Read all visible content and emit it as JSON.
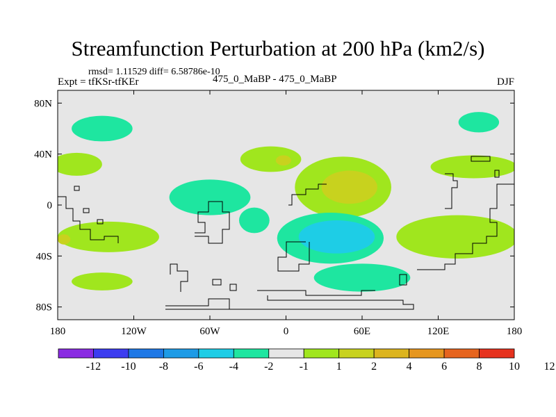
{
  "title": "Streamfunction Perturbation at 200 hPa (km2/s)",
  "stats": "rmsd= 1.11529 diff= 6.58786e-10",
  "left_label": "Expt = tfKSr-tfKEr",
  "center_label": "475_0_MaBP - 475_0_MaBP",
  "right_label": "DJF",
  "chart_data": {
    "type": "heatmap",
    "projection": "cylindrical equidistant",
    "xlim": [
      -180,
      180
    ],
    "ylim": [
      -90,
      90
    ],
    "x_ticks": [
      {
        "value": -180,
        "label": "180"
      },
      {
        "value": -120,
        "label": "120W"
      },
      {
        "value": -60,
        "label": "60W"
      },
      {
        "value": 0,
        "label": "0"
      },
      {
        "value": 60,
        "label": "60E"
      },
      {
        "value": 120,
        "label": "120E"
      },
      {
        "value": 180,
        "label": "180"
      }
    ],
    "y_ticks": [
      {
        "value": 80,
        "label": "80N"
      },
      {
        "value": 40,
        "label": "40N"
      },
      {
        "value": 0,
        "label": "0"
      },
      {
        "value": -40,
        "label": "40S"
      },
      {
        "value": -80,
        "label": "80S"
      }
    ],
    "colorbar": {
      "colors": [
        "#8a2be2",
        "#3c3cf0",
        "#1e78e6",
        "#1e9be6",
        "#1ecde6",
        "#1ee6a0",
        "#e6e6e6",
        "#a0e61e",
        "#c8d21e",
        "#dcb41e",
        "#e6961e",
        "#e6641e",
        "#e6321e"
      ],
      "labels": [
        "-12",
        "-10",
        "-8",
        "-6",
        "-4",
        "-2",
        "-1",
        "1",
        "2",
        "4",
        "6",
        "8",
        "10",
        "12"
      ]
    },
    "regions": [
      {
        "value": -2,
        "color": "#1ee6a0",
        "center": [
          -145,
          60
        ],
        "radius": [
          24,
          10
        ],
        "desc": "N Pacific high-lat"
      },
      {
        "value": 2,
        "color": "#a0e61e",
        "center": [
          -165,
          32
        ],
        "radius": [
          20,
          9
        ]
      },
      {
        "value": 2,
        "color": "#a0e61e",
        "center": [
          -12,
          36
        ],
        "radius": [
          24,
          10
        ]
      },
      {
        "value": 4,
        "color": "#c8d21e",
        "center": [
          -2,
          35
        ],
        "radius": [
          6,
          4
        ]
      },
      {
        "value": -2,
        "color": "#1ee6a0",
        "center": [
          -60,
          6
        ],
        "radius": [
          32,
          14
        ]
      },
      {
        "value": -2,
        "color": "#1ee6a0",
        "center": [
          -25,
          -12
        ],
        "radius": [
          12,
          10
        ]
      },
      {
        "value": 2,
        "color": "#a0e61e",
        "center": [
          -140,
          -25
        ],
        "radius": [
          40,
          12
        ]
      },
      {
        "value": 4,
        "color": "#c8d21e",
        "center": [
          -175,
          -27
        ],
        "radius": [
          5,
          4
        ]
      },
      {
        "value": 2,
        "color": "#a0e61e",
        "center": [
          45,
          14
        ],
        "radius": [
          38,
          24
        ]
      },
      {
        "value": 4,
        "color": "#c8d21e",
        "center": [
          50,
          14
        ],
        "radius": [
          22,
          13
        ]
      },
      {
        "value": -2,
        "color": "#1ee6a0",
        "center": [
          35,
          -26
        ],
        "radius": [
          42,
          20
        ]
      },
      {
        "value": -4,
        "color": "#1ecde6",
        "center": [
          40,
          -25
        ],
        "radius": [
          30,
          13
        ]
      },
      {
        "value": 2,
        "color": "#a0e61e",
        "center": [
          135,
          -25
        ],
        "radius": [
          48,
          17
        ]
      },
      {
        "value": 2,
        "color": "#a0e61e",
        "center": [
          148,
          30
        ],
        "radius": [
          34,
          9
        ]
      },
      {
        "value": -2,
        "color": "#1ee6a0",
        "center": [
          152,
          65
        ],
        "radius": [
          16,
          8
        ]
      },
      {
        "value": 2,
        "color": "#a0e61e",
        "center": [
          -145,
          -60
        ],
        "radius": [
          24,
          7
        ]
      },
      {
        "value": -2,
        "color": "#1ee6a0",
        "center": [
          60,
          -57
        ],
        "radius": [
          38,
          11
        ]
      }
    ]
  }
}
